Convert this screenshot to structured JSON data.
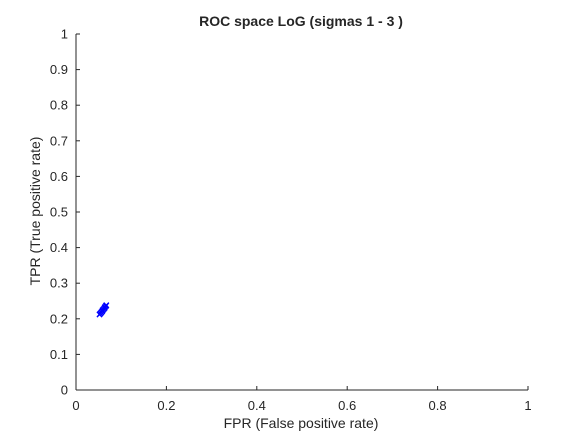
{
  "chart_data": {
    "type": "scatter",
    "title": "ROC space LoG (sigmas 1 - 3 )",
    "xlabel": "FPR (False positive rate)",
    "ylabel": "TPR (True positive rate)",
    "xlim": [
      0,
      1
    ],
    "ylim": [
      0,
      1
    ],
    "xticks": [
      0,
      0.2,
      0.4,
      0.6,
      0.8,
      1
    ],
    "xtick_labels": [
      "0",
      "0.2",
      "0.4",
      "0.6",
      "0.8",
      "1"
    ],
    "yticks": [
      0,
      0.1,
      0.2,
      0.3,
      0.4,
      0.5,
      0.6,
      0.7,
      0.8,
      0.9,
      1
    ],
    "ytick_labels": [
      "0",
      "0.1",
      "0.2",
      "0.3",
      "0.4",
      "0.5",
      "0.6",
      "0.7",
      "0.8",
      "0.9",
      "1"
    ],
    "grid": false,
    "box": "left-bottom axes only",
    "series": [
      {
        "marker": "x",
        "color": "#0000ff",
        "points": [
          {
            "x": 0.052,
            "y": 0.212
          },
          {
            "x": 0.054,
            "y": 0.215
          },
          {
            "x": 0.056,
            "y": 0.218
          },
          {
            "x": 0.058,
            "y": 0.221
          },
          {
            "x": 0.059,
            "y": 0.224
          },
          {
            "x": 0.061,
            "y": 0.227
          },
          {
            "x": 0.063,
            "y": 0.23
          },
          {
            "x": 0.064,
            "y": 0.233
          },
          {
            "x": 0.066,
            "y": 0.236
          },
          {
            "x": 0.067,
            "y": 0.238
          }
        ]
      }
    ]
  }
}
